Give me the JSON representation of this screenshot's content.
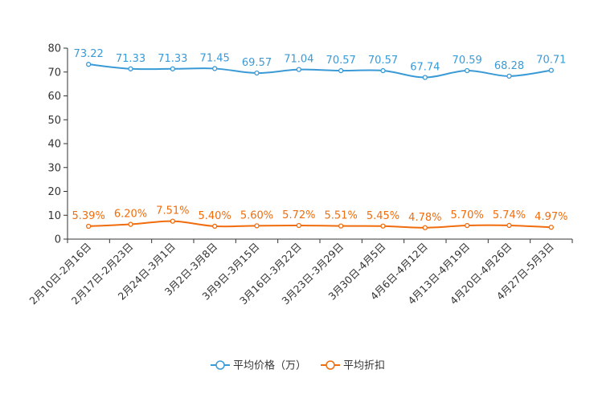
{
  "chart_data": {
    "type": "line",
    "categories": [
      "2月10日-2月16日",
      "2月17日-2月23日",
      "2月24日-3月1日",
      "3月2日-3月8日",
      "3月9日-3月15日",
      "3月16日-3月22日",
      "3月23日-3月29日",
      "3月30日-4月5日",
      "4月6日-4月12日",
      "4月13日-4月19日",
      "4月20日-4月26日",
      "4月27日-5月3日"
    ],
    "ylim": [
      0,
      80
    ],
    "yticks": [
      0,
      10,
      20,
      30,
      40,
      50,
      60,
      70,
      80
    ],
    "series": [
      {
        "name": "平均价格（万）",
        "color": "#3a9ad6",
        "values": [
          73.22,
          71.33,
          71.33,
          71.45,
          69.57,
          71.04,
          70.57,
          70.57,
          67.74,
          70.59,
          68.28,
          70.71
        ],
        "labels": [
          "73.22",
          "71.33",
          "71.33",
          "71.45",
          "69.57",
          "71.04",
          "70.57",
          "70.57",
          "67.74",
          "70.59",
          "68.28",
          "70.71"
        ]
      },
      {
        "name": "平均折扣",
        "color": "#f06c0c",
        "values": [
          5.39,
          6.2,
          7.51,
          5.4,
          5.6,
          5.72,
          5.51,
          5.45,
          4.78,
          5.7,
          5.74,
          4.97
        ],
        "labels": [
          "5.39%",
          "6.20%",
          "7.51%",
          "5.40%",
          "5.60%",
          "5.72%",
          "5.51%",
          "5.45%",
          "4.78%",
          "5.70%",
          "5.74%",
          "4.97%"
        ]
      }
    ],
    "legend_position": "bottom-center"
  }
}
